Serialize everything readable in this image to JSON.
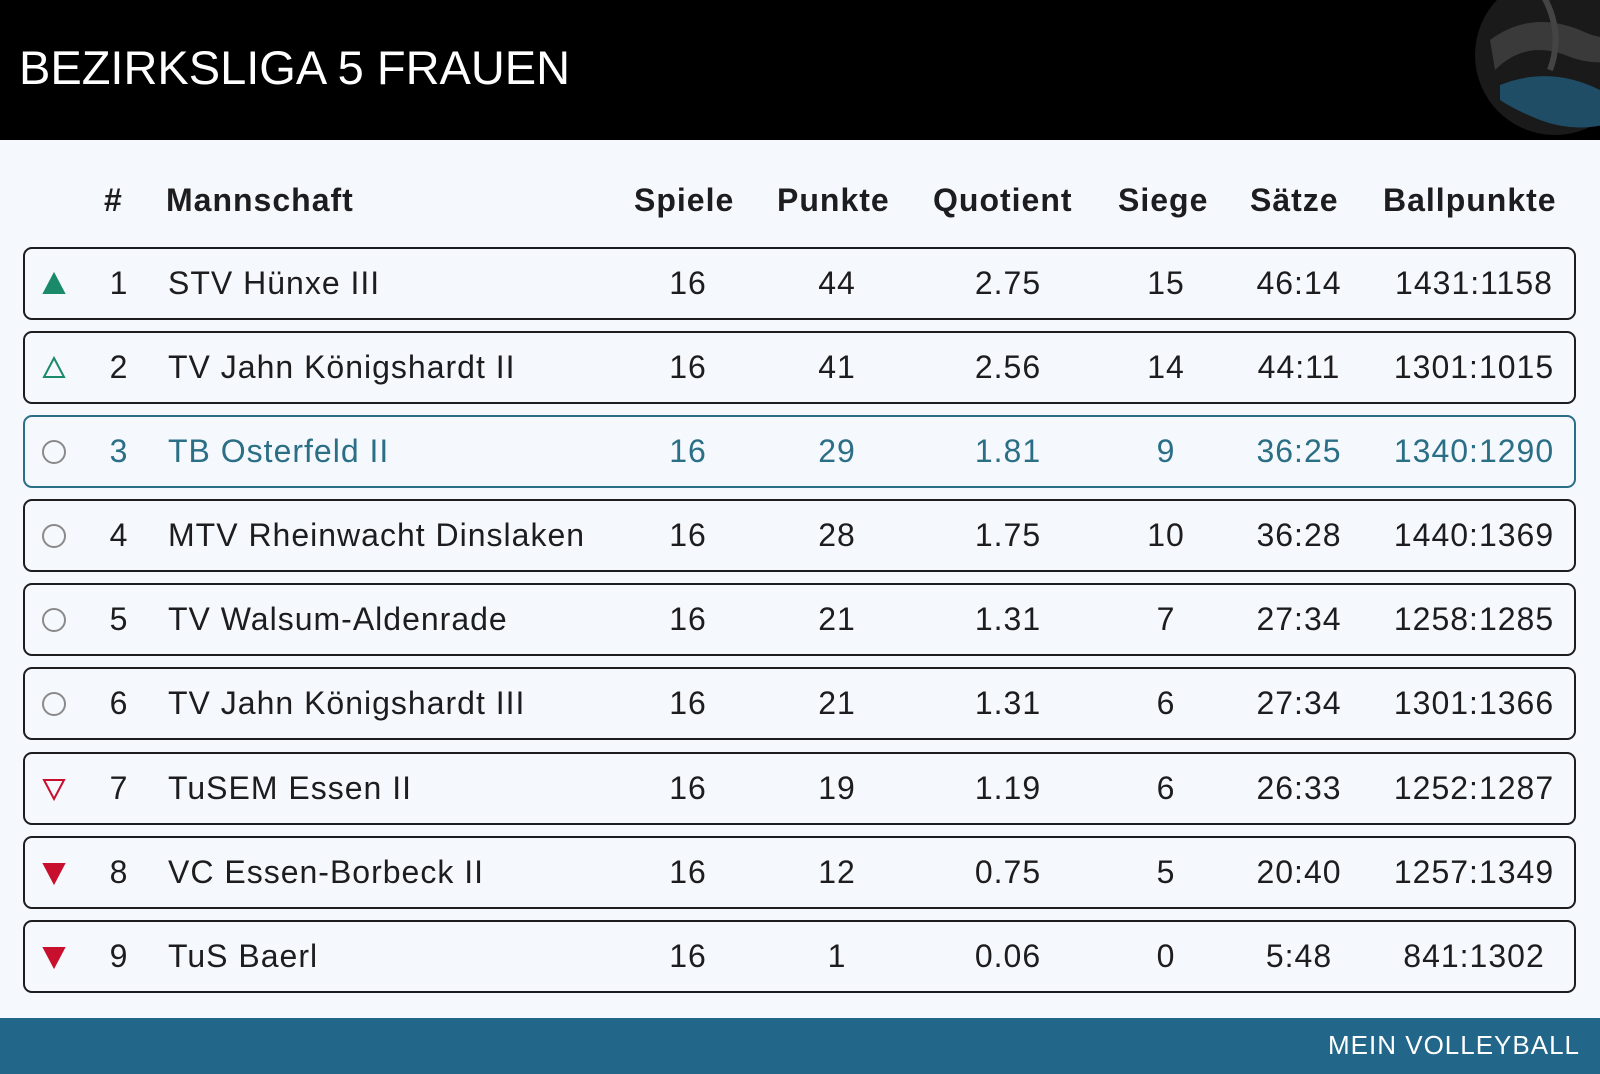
{
  "header": {
    "title": "BEZIRKSLIGA 5 FRAUEN",
    "logo_icon": "volleyball-icon"
  },
  "table": {
    "columns": [
      "#",
      "Mannschaft",
      "Spiele",
      "Punkte",
      "Quotient",
      "Siege",
      "Sätze",
      "Ballpunkte"
    ],
    "rows": [
      {
        "status": "promoted",
        "rank": "1",
        "team": "STV Hünxe III",
        "games": "16",
        "points": "44",
        "quotient": "2.75",
        "wins": "15",
        "sets": "46:14",
        "ballpoints": "1431:1158"
      },
      {
        "status": "promotion-playoff",
        "rank": "2",
        "team": "TV Jahn Königshardt II",
        "games": "16",
        "points": "41",
        "quotient": "2.56",
        "wins": "14",
        "sets": "44:11",
        "ballpoints": "1301:1015"
      },
      {
        "status": "neutral",
        "rank": "3",
        "team": "TB Osterfeld II",
        "games": "16",
        "points": "29",
        "quotient": "1.81",
        "wins": "9",
        "sets": "36:25",
        "ballpoints": "1340:1290",
        "highlight": true
      },
      {
        "status": "neutral",
        "rank": "4",
        "team": "MTV Rheinwacht Dinslaken",
        "games": "16",
        "points": "28",
        "quotient": "1.75",
        "wins": "10",
        "sets": "36:28",
        "ballpoints": "1440:1369"
      },
      {
        "status": "neutral",
        "rank": "5",
        "team": "TV Walsum-Aldenrade",
        "games": "16",
        "points": "21",
        "quotient": "1.31",
        "wins": "7",
        "sets": "27:34",
        "ballpoints": "1258:1285"
      },
      {
        "status": "neutral",
        "rank": "6",
        "team": "TV Jahn Königshardt III",
        "games": "16",
        "points": "21",
        "quotient": "1.31",
        "wins": "6",
        "sets": "27:34",
        "ballpoints": "1301:1366"
      },
      {
        "status": "relegation-playoff",
        "rank": "7",
        "team": "TuSEM Essen II",
        "games": "16",
        "points": "19",
        "quotient": "1.19",
        "wins": "6",
        "sets": "26:33",
        "ballpoints": "1252:1287"
      },
      {
        "status": "relegated",
        "rank": "8",
        "team": "VC Essen-Borbeck II",
        "games": "16",
        "points": "12",
        "quotient": "0.75",
        "wins": "5",
        "sets": "20:40",
        "ballpoints": "1257:1349"
      },
      {
        "status": "relegated",
        "rank": "9",
        "team": "TuS Baerl",
        "games": "16",
        "points": "1",
        "quotient": "0.06",
        "wins": "0",
        "sets": "5:48",
        "ballpoints": "841:1302"
      }
    ]
  },
  "colors": {
    "header_bg": "#000000",
    "page_bg": "#f5f8fc",
    "accent": "#2b6f87",
    "promote_green": "#1a8a6a",
    "relegate_red": "#c8102e",
    "neutral_gray": "#8a8a8a",
    "footer_bg": "#22678a"
  },
  "footer": {
    "brand": "MEIN VOLLEYBALL"
  }
}
